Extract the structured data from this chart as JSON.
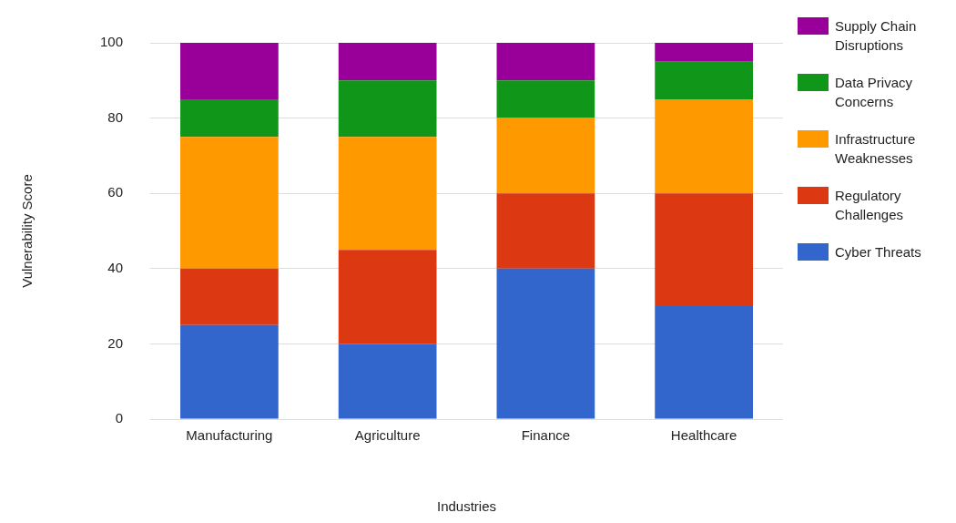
{
  "chart_data": {
    "type": "bar",
    "stacked": true,
    "xlabel": "Industries",
    "ylabel": "Vulnerability Score",
    "categories": [
      "Manufacturing",
      "Agriculture",
      "Finance",
      "Healthcare"
    ],
    "series": [
      {
        "name": "Cyber Threats",
        "color": "#3366cc",
        "values": [
          25,
          20,
          40,
          30
        ]
      },
      {
        "name": "Regulatory Challenges",
        "color": "#dc3912",
        "values": [
          15,
          25,
          20,
          30
        ]
      },
      {
        "name": "Infrastructure Weaknesses",
        "color": "#ff9900",
        "values": [
          35,
          30,
          20,
          25
        ]
      },
      {
        "name": "Data Privacy Concerns",
        "color": "#109618",
        "values": [
          10,
          15,
          10,
          10
        ]
      },
      {
        "name": "Supply Chain Disruptions",
        "color": "#990099",
        "values": [
          15,
          10,
          10,
          5
        ]
      }
    ],
    "ylim": [
      0,
      100
    ],
    "yticks": [
      0,
      20,
      40,
      60,
      80,
      100
    ],
    "grid": "y",
    "legend": "right"
  }
}
